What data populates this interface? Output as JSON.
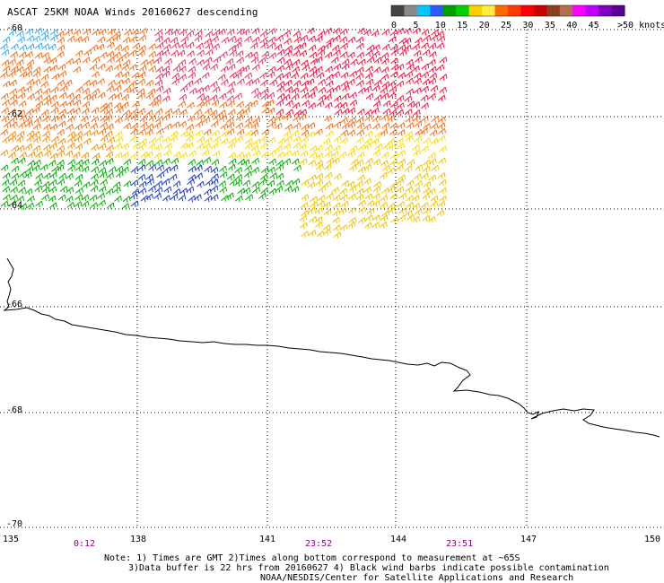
{
  "header": {
    "title": "ASCAT 25KM NOAA Winds 20160627 descending"
  },
  "legend": {
    "unit_label": ">50 knots",
    "ticks": [
      "0",
      "5",
      "10",
      "15",
      "20",
      "25",
      "30",
      "35",
      "40",
      "45"
    ],
    "colors": [
      "#444444",
      "#8a8a8a",
      "#00c8ff",
      "#2a5cff",
      "#00a000",
      "#00d000",
      "#ffd000",
      "#ffee40",
      "#ff6a00",
      "#ff3a00",
      "#ff0000",
      "#c80000",
      "#8a4020",
      "#b07050",
      "#ff00ff",
      "#c000ff",
      "#8000c0",
      "#5a0090"
    ]
  },
  "axes": {
    "y_labels": [
      "-60",
      "-62",
      "-64",
      "-66",
      "-68",
      "-70"
    ],
    "x_labels": [
      "135",
      "138",
      "141",
      "144",
      "147",
      "150"
    ],
    "time_labels": [
      "0:12",
      "23:52",
      "23:51"
    ]
  },
  "notes": {
    "line1": "Note: 1) Times are GMT 2)Times along bottom correspond to measurement at ~65S",
    "line2": "3)Data buffer is 22 hrs from 20160627 4) Black wind barbs indicate possible contamination",
    "line3": "NOAA/NESDIS/Center for Satellite Applications and Research"
  }
}
